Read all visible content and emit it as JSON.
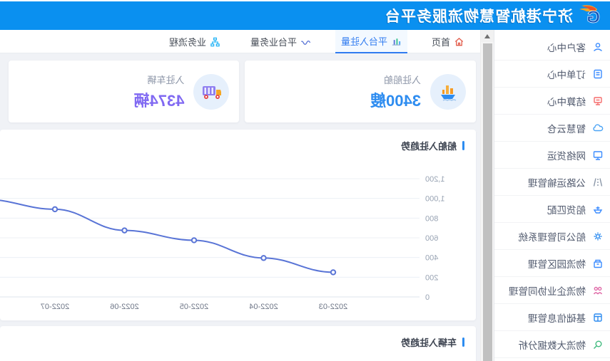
{
  "header": {
    "title": "济宁港航智慧物流服务平台"
  },
  "sidebar": {
    "items": [
      {
        "label": "客户中心",
        "icon": "customer-icon",
        "color": "#3b8cff"
      },
      {
        "label": "订单中心",
        "icon": "order-icon",
        "color": "#3b8cff"
      },
      {
        "label": "结算中心",
        "icon": "settlement-icon",
        "color": "#f56c6c"
      },
      {
        "label": "智慧云仓",
        "icon": "cloud-icon",
        "color": "#4aa3f5"
      },
      {
        "label": "网络货运",
        "icon": "network-icon",
        "color": "#3b8cff"
      },
      {
        "label": "公路运输管理",
        "icon": "road-icon",
        "color": "#8a97a8"
      },
      {
        "label": "船货匹配",
        "icon": "ship-match-icon",
        "color": "#3b8cff"
      },
      {
        "label": "船公司管理系统",
        "icon": "gear-icon",
        "color": "#2d8cf0"
      },
      {
        "label": "物流园区管理",
        "icon": "park-icon",
        "color": "#3b8cff"
      },
      {
        "label": "物流企业协同管理",
        "icon": "partner-icon",
        "color": "#e06ba8"
      },
      {
        "label": "基础信息管理",
        "icon": "info-icon",
        "color": "#2d8cf0"
      },
      {
        "label": "物流大数据分析",
        "icon": "search-icon",
        "color": "#3fba7d"
      }
    ]
  },
  "tabs": [
    {
      "label": "首页",
      "icon": "home-icon",
      "active": false
    },
    {
      "label": "平台入驻量",
      "icon": "bar-chart-icon",
      "active": true
    },
    {
      "label": "平台业务量",
      "icon": "wave-icon",
      "active": false
    },
    {
      "label": "业务流程",
      "icon": "flow-icon",
      "active": false
    }
  ],
  "cards": [
    {
      "label": "入驻船舶",
      "value": "3400艘",
      "icon": "ship-icon",
      "value_color": "#2d8cf0"
    },
    {
      "label": "入驻车辆",
      "value": "4374辆",
      "icon": "truck-icon",
      "value_color": "#8069f2"
    }
  ],
  "chart_data": {
    "type": "line",
    "title": "船舶入驻趋势",
    "x": [
      "2022-03",
      "2022-04",
      "2022-05",
      "2022-06",
      "2022-07"
    ],
    "values": [
      250,
      395,
      575,
      675,
      890
    ],
    "partial_next_value": 990,
    "ylim": [
      0,
      1200
    ],
    "ytick_labels": [
      "0",
      "200",
      "400",
      "600",
      "800",
      "1,000",
      "1,200"
    ],
    "grid": true,
    "legend_position": "none",
    "line_color": "#5974d6"
  },
  "section2": {
    "title": "车辆入驻趋势"
  },
  "colors": {
    "header_blue": "#0a90f0",
    "accent_blue": "#2f7bf0",
    "card1_value": "#2d8cf0",
    "card2_value": "#8069f2",
    "line_blue": "#5974d6"
  }
}
